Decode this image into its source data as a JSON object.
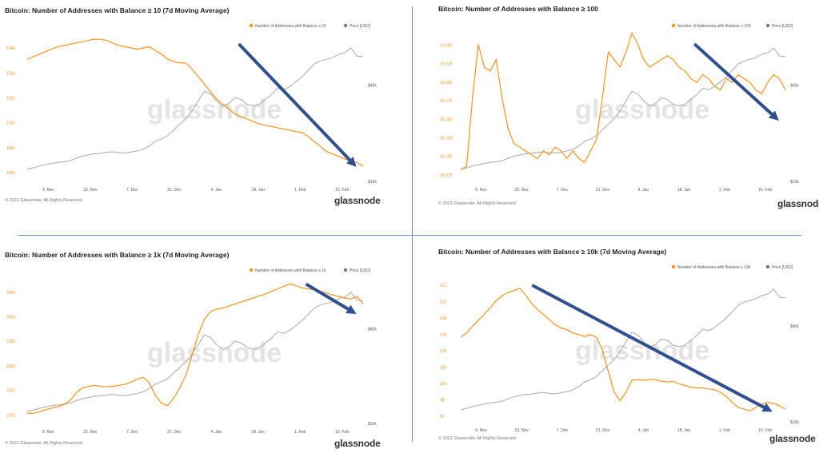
{
  "copyright": "© 2021 Glassnode. All Rights Reserved.",
  "brand": "glassnode",
  "watermark": "glassnode",
  "colors": {
    "balance": "#f7931a",
    "price": "#a9a9a9",
    "arrow": "#2f4f8f",
    "axis_orange": "#f7931a",
    "axis_gray": "#555555"
  },
  "chart_data": [
    {
      "type": "line",
      "title": "Bitcoin: Number of Addresses with Balance ≥ 10 (7d Moving Average)",
      "legend": [
        "Number of Addresses with Balance ≥ 10",
        "Price [USD]"
      ],
      "x_ticks": [
        "9. Nov",
        "23. Nov",
        "7. Dec",
        "21. Dec",
        "4. Jan",
        "18. Jan",
        "1. Feb",
        "15. Feb"
      ],
      "y_left_ticks": [
        "149k",
        "150k",
        "151k",
        "152k",
        "153k",
        "154k"
      ],
      "y_left_range": [
        148800,
        154600
      ],
      "y_right_ticks": [
        "$10k",
        "$40k"
      ],
      "y_right_range": [
        10000,
        55000
      ],
      "x": [
        0,
        2,
        4,
        6,
        8,
        10,
        12,
        14,
        16,
        18,
        20,
        22,
        24,
        26,
        28,
        30,
        32,
        34,
        36,
        38,
        40,
        42,
        44,
        46,
        48,
        50,
        52,
        54,
        56,
        58,
        60,
        62,
        64,
        66,
        68,
        70,
        72,
        74,
        76,
        78,
        80,
        82,
        84,
        86,
        88,
        90,
        92,
        94,
        96,
        98,
        100,
        102,
        104,
        106,
        108,
        110
      ],
      "series": [
        {
          "name": "Number of Addresses with Balance ≥ 10",
          "values": [
            153700,
            153800,
            153900,
            154000,
            154100,
            154200,
            154250,
            154300,
            154350,
            154400,
            154450,
            154500,
            154500,
            154450,
            154350,
            154250,
            154200,
            154150,
            154100,
            154150,
            154200,
            154050,
            153900,
            153700,
            153600,
            153550,
            153550,
            153300,
            153000,
            152700,
            152400,
            152100,
            151900,
            151700,
            151500,
            151400,
            151300,
            151200,
            151100,
            151050,
            151000,
            150950,
            150900,
            150850,
            150800,
            150750,
            150600,
            150400,
            150200,
            150000,
            149900,
            149800,
            149700,
            149600,
            149550,
            149400
          ]
        },
        {
          "name": "Price [USD]",
          "values": [
            13800,
            14200,
            14800,
            15200,
            15600,
            15900,
            16100,
            16400,
            17200,
            17800,
            18200,
            18600,
            18700,
            19000,
            19200,
            18900,
            18800,
            19100,
            19500,
            20000,
            21000,
            22500,
            23200,
            24200,
            26000,
            27800,
            29500,
            32000,
            35000,
            38000,
            37200,
            35000,
            33500,
            34200,
            36000,
            35500,
            34000,
            33500,
            34000,
            35500,
            37000,
            39000,
            38500,
            39500,
            41000,
            42500,
            44500,
            46500,
            47500,
            48000,
            48500,
            49500,
            50000,
            51500,
            49000,
            48800
          ]
        }
      ],
      "annotation": "arrow pointing down-right"
    },
    {
      "type": "line",
      "title": "Bitcoin: Number of Addresses with Balance ≥ 100",
      "legend": [
        "Number of Addresses with Balance ≥ 100",
        "Price [USD]"
      ],
      "x_ticks": [
        "9. Nov",
        "23. Nov",
        "7. Dec",
        "21. Dec",
        "4. Jan",
        "18. Jan",
        "1. Feb",
        "15. Feb"
      ],
      "y_left_ticks": [
        "16.075",
        "16.100",
        "16.125",
        "16.150",
        "16.175",
        "16.200",
        "16.225",
        "16.250"
      ],
      "y_left_range": [
        16070,
        16260
      ],
      "y_right_ticks": [
        "$10k",
        "$40k"
      ],
      "y_right_range": [
        10000,
        55000
      ],
      "x": [
        0,
        2,
        4,
        6,
        8,
        10,
        12,
        14,
        16,
        18,
        20,
        22,
        24,
        26,
        28,
        30,
        32,
        34,
        36,
        38,
        40,
        42,
        44,
        46,
        48,
        50,
        52,
        54,
        56,
        58,
        60,
        62,
        64,
        66,
        68,
        70,
        72,
        74,
        76,
        78,
        80,
        82,
        84,
        86,
        88,
        90,
        92,
        94,
        96,
        98,
        100,
        102,
        104,
        106,
        108,
        110
      ],
      "series": [
        {
          "name": "Number of Addresses with Balance ≥ 100",
          "values": [
            16085,
            16090,
            16180,
            16250,
            16220,
            16215,
            16230,
            16180,
            16140,
            16120,
            16115,
            16110,
            16105,
            16100,
            16110,
            16105,
            16115,
            16110,
            16100,
            16110,
            16100,
            16095,
            16110,
            16125,
            16180,
            16240,
            16230,
            16220,
            16240,
            16265,
            16250,
            16230,
            16220,
            16225,
            16230,
            16235,
            16230,
            16220,
            16215,
            16205,
            16200,
            16210,
            16205,
            16195,
            16190,
            16205,
            16200,
            16210,
            16205,
            16200,
            16190,
            16185,
            16200,
            16210,
            16205,
            16190
          ]
        },
        {
          "name": "Price [USD]",
          "values": [
            13800,
            14200,
            14800,
            15200,
            15600,
            15900,
            16100,
            16400,
            17200,
            17800,
            18200,
            18600,
            18700,
            19000,
            19200,
            18900,
            18800,
            19100,
            19500,
            20000,
            21000,
            22500,
            23200,
            24200,
            26000,
            27800,
            29500,
            32000,
            35000,
            38000,
            37200,
            35000,
            33500,
            34200,
            36000,
            35500,
            34000,
            33500,
            34000,
            35500,
            37000,
            39000,
            38500,
            39500,
            41000,
            42500,
            44500,
            46500,
            47500,
            48000,
            48500,
            49500,
            50000,
            51500,
            49000,
            48800
          ]
        }
      ],
      "annotation": "arrow pointing down-right"
    },
    {
      "type": "line",
      "title": "Bitcoin: Number of Addresses with Balance ≥ 1k (7d Moving Average)",
      "legend": [
        "Number of Addresses with Balance ≥ 1k",
        "Price [USD]"
      ],
      "x_ticks": [
        "9. Nov",
        "23. Nov",
        "7. Dec",
        "21. Dec",
        "4. Jan",
        "18. Jan",
        "1. Feb",
        "15. Feb"
      ],
      "y_left_ticks": [
        "2200",
        "2250",
        "2300",
        "2350",
        "2400",
        "2450"
      ],
      "y_left_range": [
        2195,
        2475
      ],
      "y_right_ticks": [
        "$10k",
        "$40k"
      ],
      "y_right_range": [
        10000,
        55000
      ],
      "x": [
        0,
        2,
        4,
        6,
        8,
        10,
        12,
        14,
        16,
        18,
        20,
        22,
        24,
        26,
        28,
        30,
        32,
        34,
        36,
        38,
        40,
        42,
        44,
        46,
        48,
        50,
        52,
        54,
        56,
        58,
        60,
        62,
        64,
        66,
        68,
        70,
        72,
        74,
        76,
        78,
        80,
        82,
        84,
        86,
        88,
        90,
        92,
        94,
        96,
        98,
        100,
        102,
        104,
        106,
        108,
        110
      ],
      "series": [
        {
          "name": "Number of Addresses with Balance ≥ 1k",
          "values": [
            2215,
            2215,
            2218,
            2222,
            2225,
            2228,
            2232,
            2240,
            2255,
            2265,
            2268,
            2270,
            2268,
            2267,
            2268,
            2270,
            2272,
            2276,
            2282,
            2286,
            2275,
            2250,
            2235,
            2230,
            2245,
            2265,
            2290,
            2330,
            2370,
            2400,
            2415,
            2420,
            2422,
            2426,
            2430,
            2434,
            2438,
            2442,
            2446,
            2450,
            2455,
            2460,
            2465,
            2470,
            2466,
            2462,
            2460,
            2458,
            2455,
            2452,
            2448,
            2445,
            2442,
            2440,
            2445,
            2430
          ]
        },
        {
          "name": "Price [USD]",
          "values": [
            13800,
            14200,
            14800,
            15200,
            15600,
            15900,
            16100,
            16400,
            17200,
            17800,
            18200,
            18600,
            18700,
            19000,
            19200,
            18900,
            18800,
            19100,
            19500,
            20000,
            21000,
            22500,
            23200,
            24200,
            26000,
            27800,
            29500,
            32000,
            35000,
            38000,
            37200,
            35000,
            33500,
            34200,
            36000,
            35500,
            34000,
            33500,
            34000,
            35500,
            37000,
            39000,
            38500,
            39500,
            41000,
            42500,
            44500,
            46500,
            47500,
            48000,
            48500,
            49500,
            50000,
            51500,
            49000,
            48800
          ]
        }
      ],
      "annotation": "arrow pointing down-right"
    },
    {
      "type": "line",
      "title": "Bitcoin: Number of Addresses with Balance ≥ 10k (7d Moving Average)",
      "legend": [
        "Number of Addresses with Balance ≥ 10k",
        "Price [USD]"
      ],
      "x_ticks": [
        "9. Nov",
        "23. Nov",
        "7. Dec",
        "21. Dec",
        "4. Jan",
        "18. Jan",
        "1. Feb",
        "15. Feb"
      ],
      "y_left_ticks": [
        "96",
        "98",
        "100",
        "102",
        "104",
        "106",
        "108",
        "110",
        "112"
      ],
      "y_left_range": [
        95.5,
        112.5
      ],
      "y_right_ticks": [
        "$10k",
        "$40k"
      ],
      "y_right_range": [
        10000,
        55000
      ],
      "x": [
        0,
        2,
        4,
        6,
        8,
        10,
        12,
        14,
        16,
        18,
        20,
        22,
        24,
        26,
        28,
        30,
        32,
        34,
        36,
        38,
        40,
        42,
        44,
        46,
        48,
        50,
        52,
        54,
        56,
        58,
        60,
        62,
        64,
        66,
        68,
        70,
        72,
        74,
        76,
        78,
        80,
        82,
        84,
        86,
        88,
        90,
        92,
        94,
        96,
        98,
        100,
        102,
        104,
        106,
        108,
        110
      ],
      "series": [
        {
          "name": "Number of Addresses with Balance ≥ 10k",
          "values": [
            105.5,
            106,
            106.8,
            107.5,
            108.2,
            109,
            109.8,
            110.4,
            110.8,
            111,
            111.3,
            110.5,
            109.5,
            108.8,
            108.2,
            107.6,
            107,
            106.6,
            106.4,
            106,
            105.8,
            105.6,
            105.8,
            105.5,
            104,
            101.5,
            99,
            98,
            99,
            100.4,
            100.5,
            100.4,
            100.5,
            100.5,
            100.3,
            100.2,
            100.3,
            100,
            99.8,
            99.6,
            99.5,
            99.5,
            99.4,
            99.3,
            99,
            98.5,
            97.8,
            97.2,
            97,
            96.8,
            97.2,
            97.6,
            97.8,
            97.7,
            97.4,
            97
          ]
        },
        {
          "name": "Price [USD]",
          "values": [
            13800,
            14200,
            14800,
            15200,
            15600,
            15900,
            16100,
            16400,
            17200,
            17800,
            18200,
            18600,
            18700,
            19000,
            19200,
            18900,
            18800,
            19100,
            19500,
            20000,
            21000,
            22500,
            23200,
            24200,
            26000,
            27800,
            29500,
            32000,
            35000,
            38000,
            37200,
            35000,
            33500,
            34200,
            36000,
            35500,
            34000,
            33500,
            34000,
            35500,
            37000,
            39000,
            38500,
            39500,
            41000,
            42500,
            44500,
            46500,
            47500,
            48000,
            48500,
            49500,
            50000,
            51500,
            49000,
            48800
          ]
        }
      ],
      "annotation": "arrow pointing down-right"
    }
  ]
}
